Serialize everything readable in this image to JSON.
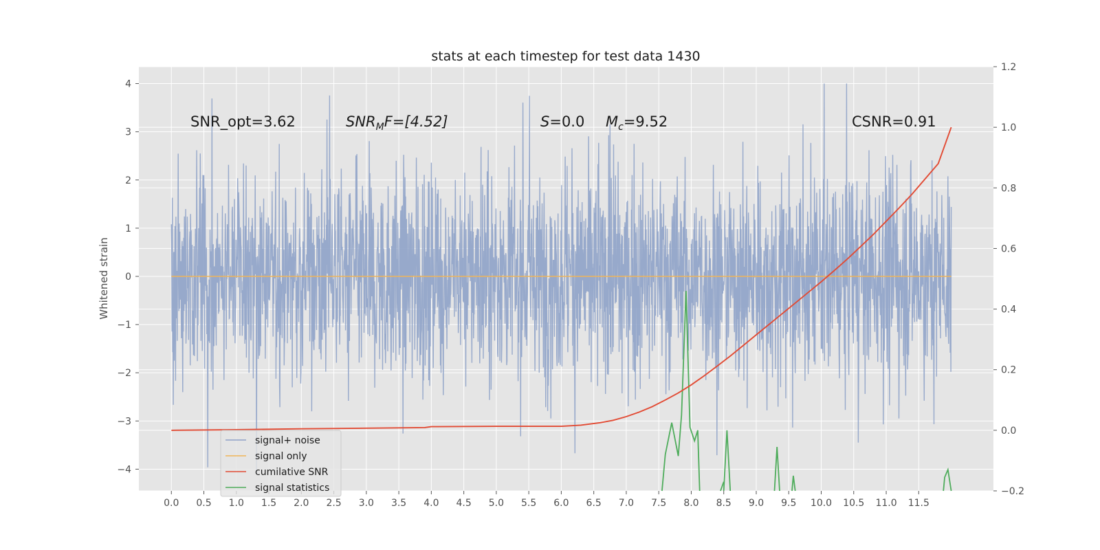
{
  "chart_data": {
    "type": "line",
    "title": "stats at each timestep for test data 1430",
    "ylabel": "Whitened strain",
    "y2label": "",
    "xlim": [
      -0.5,
      12.65
    ],
    "ylim": [
      -4.45,
      4.35
    ],
    "y2lim": [
      -0.2,
      1.2
    ],
    "x_ticks": [
      0.0,
      0.5,
      1.0,
      1.5,
      2.0,
      2.5,
      3.0,
      3.5,
      4.0,
      4.5,
      5.0,
      5.5,
      6.0,
      6.5,
      7.0,
      7.5,
      8.0,
      8.5,
      9.0,
      9.5,
      10.0,
      10.5,
      11.0,
      11.5
    ],
    "x_tick_labels": [
      "0.0",
      "0.5",
      "1.0",
      "1.5",
      "2.0",
      "2.5",
      "3.0",
      "3.5",
      "4.0",
      "4.5",
      "5.0",
      "5.5",
      "6.0",
      "6.5",
      "7.0",
      "7.5",
      "8.0",
      "8.5",
      "9.0",
      "9.5",
      "10.0",
      "10.5",
      "11.0",
      "11.5"
    ],
    "y_ticks": [
      4,
      3,
      2,
      1,
      0,
      -1,
      -2,
      -3,
      -4
    ],
    "y_tick_labels": [
      "4",
      "3",
      "2",
      "1",
      "0",
      "−1",
      "−2",
      "−3",
      "−4"
    ],
    "y2_ticks": [
      1.2,
      1.0,
      0.8,
      0.6,
      0.4,
      0.2,
      0.0,
      -0.2
    ],
    "y2_tick_labels": [
      "1.2",
      "1.0",
      "0.8",
      "0.6",
      "0.4",
      "0.2",
      "0.0",
      "−0.2"
    ],
    "grid": true,
    "legend_position": "lower-left",
    "series": [
      {
        "name": "signal+ noise",
        "axis": "left",
        "color": "#8ea2c8",
        "style": "dense-noise",
        "x_range": [
          0.0,
          12.0
        ],
        "y_extent": [
          -4.1,
          4.0
        ],
        "typical_band": [
          -2.2,
          2.5
        ]
      },
      {
        "name": "signal only",
        "axis": "left",
        "color": "#f0b557",
        "x": [
          0.0,
          12.0
        ],
        "y": [
          0.0,
          0.0
        ]
      },
      {
        "name": "cumilative SNR",
        "axis": "right",
        "color": "#e24a33",
        "x": [
          0.0,
          1.0,
          2.0,
          3.0,
          3.9,
          4.0,
          5.0,
          5.5,
          6.0,
          6.3,
          6.6,
          6.8,
          7.0,
          7.2,
          7.4,
          7.6,
          7.8,
          8.0,
          8.2,
          8.4,
          8.6,
          8.8,
          9.0,
          9.2,
          9.4,
          9.6,
          9.8,
          10.0,
          10.2,
          10.4,
          10.6,
          10.8,
          11.0,
          11.2,
          11.4,
          11.6,
          11.8,
          12.0
        ],
        "y": [
          0.0,
          0.002,
          0.005,
          0.007,
          0.009,
          0.012,
          0.013,
          0.013,
          0.013,
          0.017,
          0.025,
          0.033,
          0.045,
          0.06,
          0.078,
          0.1,
          0.123,
          0.15,
          0.18,
          0.212,
          0.245,
          0.28,
          0.315,
          0.35,
          0.385,
          0.42,
          0.455,
          0.49,
          0.527,
          0.565,
          0.605,
          0.646,
          0.69,
          0.734,
          0.78,
          0.83,
          0.88,
          1.0
        ]
      },
      {
        "name": "signal statistics",
        "axis": "right",
        "color": "#4eac5b",
        "segments": [
          {
            "x": [
              7.55,
              7.6,
              7.7,
              7.8,
              7.85,
              7.92,
              7.98,
              8.05,
              8.1,
              8.13
            ],
            "y": [
              -0.2,
              -0.08,
              0.025,
              -0.085,
              0.05,
              0.46,
              0.01,
              -0.035,
              0.0,
              -0.2
            ]
          },
          {
            "x": [
              8.45,
              8.5
            ],
            "y": [
              -0.2,
              -0.17
            ]
          },
          {
            "x": [
              8.5,
              8.55,
              8.6
            ],
            "y": [
              -0.2,
              0.0,
              -0.2
            ]
          },
          {
            "x": [
              9.28,
              9.32,
              9.36
            ],
            "y": [
              -0.2,
              -0.055,
              -0.2
            ]
          },
          {
            "x": [
              9.55,
              9.57,
              9.6
            ],
            "y": [
              -0.2,
              -0.15,
              -0.2
            ]
          },
          {
            "x": [
              11.88,
              11.9,
              11.95,
              12.0
            ],
            "y": [
              -0.2,
              -0.155,
              -0.13,
              -0.2
            ]
          }
        ]
      }
    ]
  },
  "annotations": {
    "snr_opt": "SNR_opt=3.62",
    "snr_mf_main": "SNR",
    "snr_mf_sub": "M",
    "snr_mf_rest": "F=[4.52]",
    "s_var": "S",
    "s_val": "=0.0",
    "mc_var": "M",
    "mc_sub": "c",
    "mc_val": "=9.52",
    "csnr": "CSNR=0.91"
  },
  "legend": {
    "items": [
      {
        "label": "signal+ noise",
        "color": "#8ea2c8"
      },
      {
        "label": "signal only",
        "color": "#f0b557"
      },
      {
        "label": "cumilative SNR",
        "color": "#e24a33"
      },
      {
        "label": "signal statistics",
        "color": "#4eac5b"
      }
    ]
  },
  "colors": {
    "plot_background": "#e5e5e5",
    "grid": "#ffffff"
  }
}
